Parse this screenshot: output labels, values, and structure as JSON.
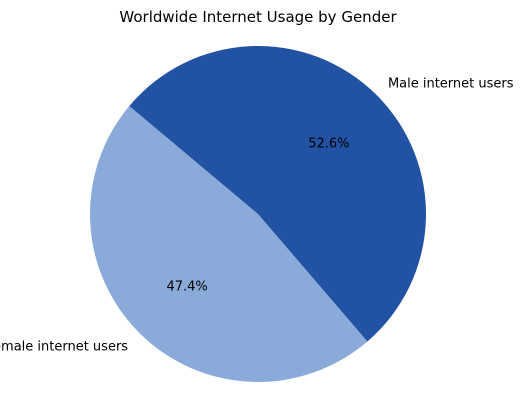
{
  "chart_data": {
    "type": "pie",
    "title": "Worldwide Internet Usage by Gender",
    "slices": [
      {
        "label": "Female internet users",
        "value": 47.4,
        "pct_label": "47.4%",
        "color": "#8aaad9"
      },
      {
        "label": "Male internet users",
        "value": 52.6,
        "pct_label": "52.6%",
        "color": "#2252a4"
      }
    ],
    "start_angle_deg": 140,
    "direction": "counterclockwise",
    "legend": "none"
  }
}
